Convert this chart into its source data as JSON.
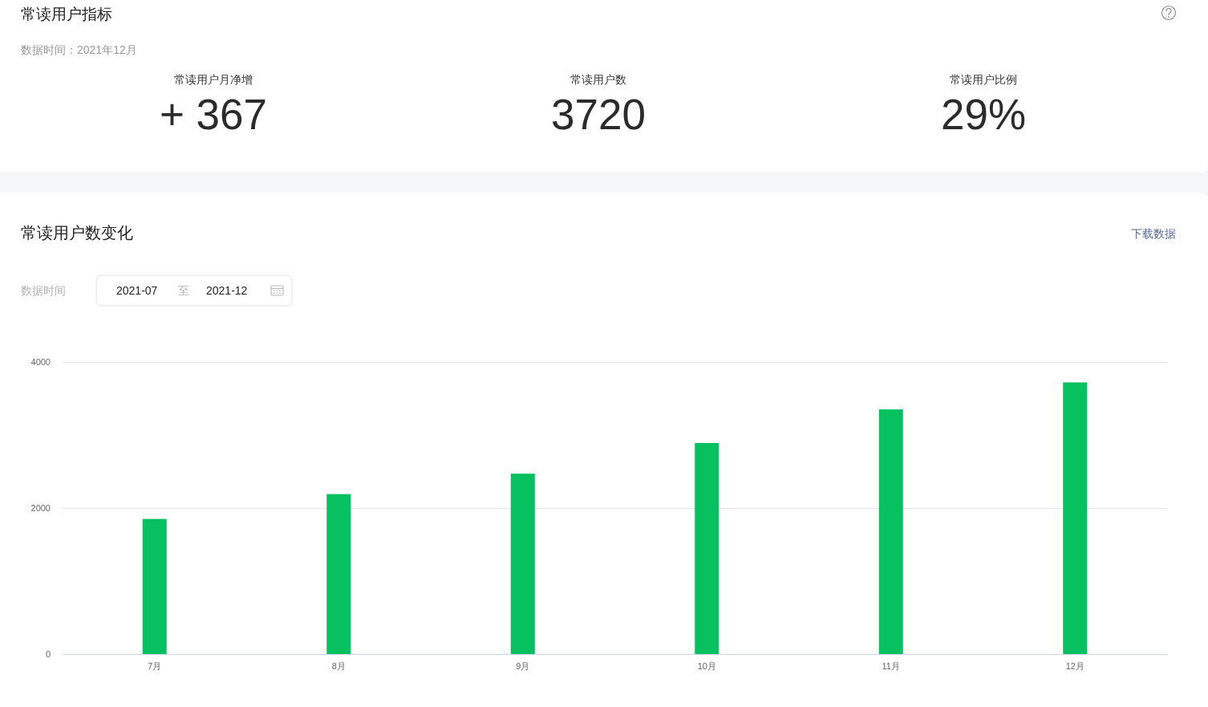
{
  "chart_data": [
    {
      "type": "other",
      "title": "常读用户指标",
      "subtitle": "数据时间：2021年12月",
      "annotations": [
        "常读用户月净增",
        "+ 367",
        "常读用户数",
        "3720",
        "常读用户比例",
        "29%"
      ]
    },
    {
      "type": "bar",
      "title": "常读用户数变化",
      "annotations": [
        "下载数据",
        "数据时间",
        "2021-07",
        "至",
        "2021-12"
      ],
      "categories": [
        "7月",
        "8月",
        "9月",
        "10月",
        "11月",
        "12月"
      ],
      "values": [
        1850,
        2190,
        2470,
        2890,
        3350,
        3720
      ],
      "color": "#07c160",
      "ylim": [
        0,
        4000
      ],
      "yticks": [
        0,
        2000,
        4000
      ],
      "grid": "y"
    }
  ]
}
